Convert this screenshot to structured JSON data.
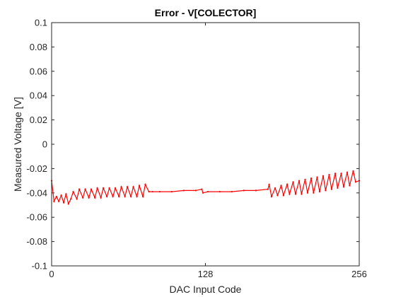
{
  "chart_data": {
    "type": "line",
    "title": "Error - V[COLECTOR]",
    "xlabel": "DAC Input Code",
    "ylabel": "Measured Voltage [V]",
    "xlim": [
      0,
      256
    ],
    "ylim": [
      -0.1,
      0.1
    ],
    "xticks": [
      0,
      128,
      256
    ],
    "xtick_labels": [
      "0",
      "128",
      "256"
    ],
    "yticks": [
      -0.1,
      -0.08,
      -0.06,
      -0.04,
      -0.02,
      0,
      0.02,
      0.04,
      0.06,
      0.08,
      0.1
    ],
    "ytick_labels": [
      "-0.1",
      "-0.08",
      "-0.06",
      "-0.04",
      "-0.02",
      "0",
      "0.02",
      "0.04",
      "0.06",
      "0.08",
      "0.1"
    ],
    "grid": false,
    "legend": "none",
    "series_color": "#ff0000",
    "series": [
      {
        "x": [
          0,
          2,
          4,
          6,
          8,
          10,
          12,
          14,
          16,
          18,
          21,
          23,
          26,
          28,
          31,
          33,
          36,
          38,
          41,
          43,
          46,
          48,
          51,
          53,
          56,
          58,
          61,
          63,
          66,
          68,
          71,
          73,
          76,
          78,
          81,
          84,
          90,
          100,
          110,
          120,
          125,
          126,
          130,
          140,
          150,
          160,
          170,
          180,
          181,
          183,
          186,
          188,
          191,
          193,
          196,
          198,
          201,
          203,
          206,
          208,
          211,
          213,
          216,
          218,
          221,
          223,
          226,
          228,
          231,
          233,
          236,
          238,
          241,
          243,
          246,
          248,
          251,
          253,
          256
        ],
        "y": [
          -0.03,
          -0.047,
          -0.043,
          -0.047,
          -0.042,
          -0.048,
          -0.041,
          -0.049,
          -0.045,
          -0.039,
          -0.045,
          -0.037,
          -0.044,
          -0.037,
          -0.044,
          -0.037,
          -0.044,
          -0.036,
          -0.044,
          -0.036,
          -0.043,
          -0.036,
          -0.043,
          -0.036,
          -0.043,
          -0.035,
          -0.043,
          -0.035,
          -0.043,
          -0.035,
          -0.043,
          -0.034,
          -0.043,
          -0.033,
          -0.039,
          -0.039,
          -0.039,
          -0.039,
          -0.038,
          -0.038,
          -0.037,
          -0.04,
          -0.039,
          -0.039,
          -0.039,
          -0.038,
          -0.038,
          -0.037,
          -0.033,
          -0.043,
          -0.036,
          -0.042,
          -0.034,
          -0.042,
          -0.033,
          -0.041,
          -0.031,
          -0.041,
          -0.03,
          -0.041,
          -0.029,
          -0.04,
          -0.028,
          -0.04,
          -0.027,
          -0.039,
          -0.026,
          -0.038,
          -0.025,
          -0.037,
          -0.024,
          -0.036,
          -0.024,
          -0.035,
          -0.023,
          -0.034,
          -0.022,
          -0.031,
          -0.03
        ]
      }
    ]
  }
}
